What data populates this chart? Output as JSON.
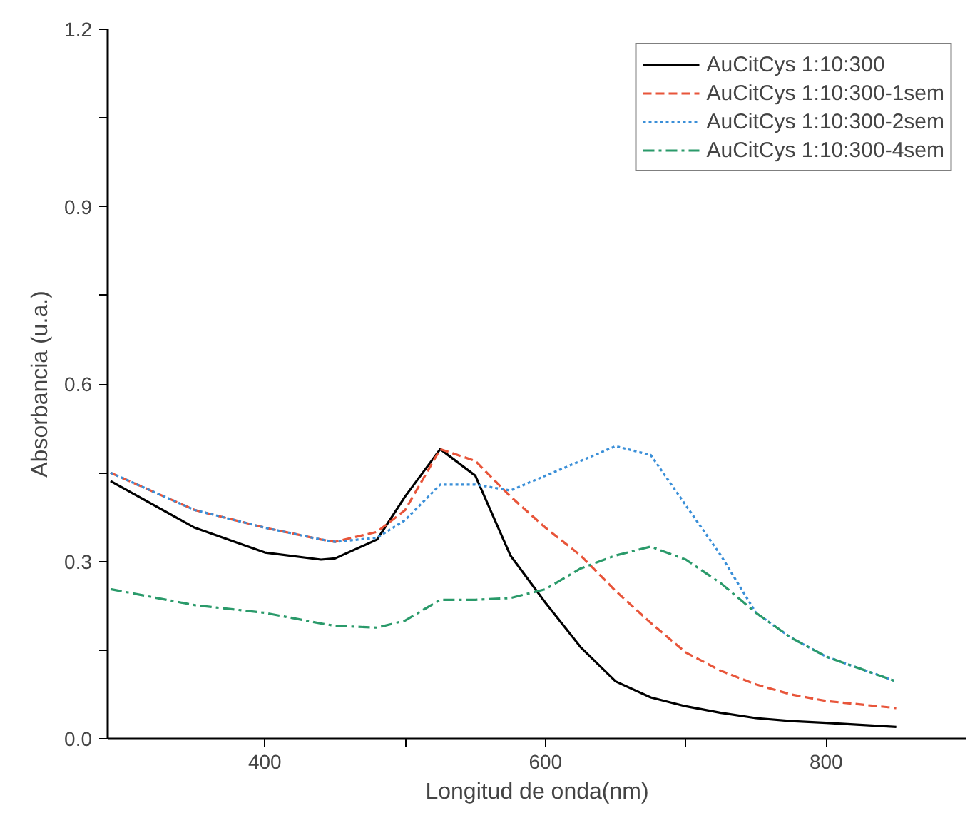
{
  "chart_data": {
    "type": "line",
    "xlabel": "Longitud de onda(nm)",
    "ylabel": "Absorbancia (u.a.)",
    "x": [
      290,
      350,
      400,
      440,
      450,
      480,
      500,
      525,
      550,
      575,
      600,
      625,
      650,
      675,
      700,
      725,
      750,
      775,
      800,
      850
    ],
    "series": [
      {
        "name": "AuCitCys 1:10:300",
        "color": "#000000",
        "line_style": "solid",
        "values": [
          0.436,
          0.357,
          0.315,
          0.303,
          0.305,
          0.337,
          0.41,
          0.49,
          0.445,
          0.31,
          0.23,
          0.155,
          0.097,
          0.07,
          0.055,
          0.044,
          0.035,
          0.03,
          0.027,
          0.02
        ]
      },
      {
        "name": "AuCitCys 1:10:300-1sem",
        "color": "#e8553a",
        "line_style": "dashed",
        "values": [
          0.45,
          0.387,
          0.357,
          0.337,
          0.333,
          0.35,
          0.387,
          0.49,
          0.47,
          0.41,
          0.357,
          0.31,
          0.25,
          0.196,
          0.146,
          0.115,
          0.092,
          0.075,
          0.064,
          0.052
        ]
      },
      {
        "name": "AuCitCys 1:10:300-2sem",
        "color": "#3a8fd8",
        "line_style": "dotted",
        "values": [
          0.45,
          0.387,
          0.357,
          0.337,
          0.333,
          0.34,
          0.37,
          0.43,
          0.43,
          0.42,
          0.445,
          0.47,
          0.495,
          0.48,
          0.395,
          0.31,
          0.213,
          0.171,
          0.139,
          0.097
        ]
      },
      {
        "name": "AuCitCys 1:10:300-4sem",
        "color": "#2a9a6a",
        "line_style": "dashdot",
        "values": [
          0.253,
          0.226,
          0.213,
          0.195,
          0.191,
          0.188,
          0.2,
          0.235,
          0.235,
          0.238,
          0.253,
          0.288,
          0.31,
          0.325,
          0.303,
          0.263,
          0.213,
          0.171,
          0.139,
          0.097
        ]
      }
    ],
    "xlim": [
      288,
      900
    ],
    "ylim": [
      0,
      1.2
    ],
    "xticks": [
      400,
      {
        "value": 500,
        "label": null
      },
      600,
      {
        "value": 700,
        "label": null
      },
      800
    ],
    "yticks": [
      {
        "value": 0,
        "label": "0.0"
      },
      {
        "value": 0.15,
        "label": null
      },
      0.3,
      {
        "value": 0.45,
        "label": null
      },
      0.6,
      {
        "value": 0.75,
        "label": null
      },
      0.9,
      {
        "value": 1.05,
        "label": null
      },
      1.2
    ],
    "grid": false,
    "legend": "top right"
  }
}
